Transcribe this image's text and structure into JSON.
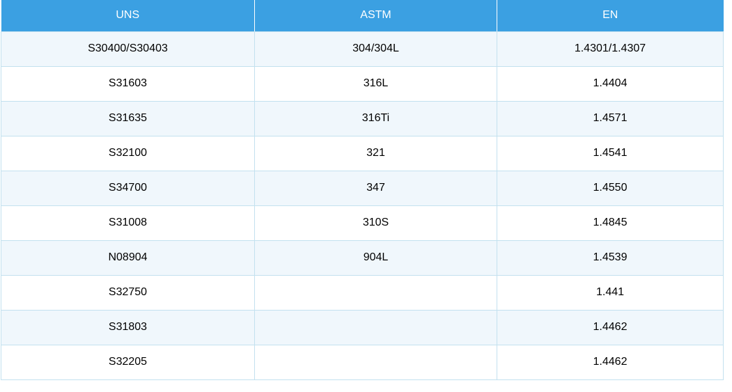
{
  "chart_data": {
    "type": "table",
    "columns": [
      "UNS",
      "ASTM",
      "EN"
    ],
    "rows": [
      [
        "S30400/S30403",
        "304/304L",
        "1.4301/1.4307"
      ],
      [
        "S31603",
        "316L",
        "1.4404"
      ],
      [
        "S31635",
        "316Ti",
        "1.4571"
      ],
      [
        "S32100",
        "321",
        "1.4541"
      ],
      [
        "S34700",
        "347",
        "1.4550"
      ],
      [
        "S31008",
        "310S",
        "1.4845"
      ],
      [
        "N08904",
        "904L",
        "1.4539"
      ],
      [
        "S32750",
        "",
        "1.441"
      ],
      [
        "S31803",
        "",
        "1.4462"
      ],
      [
        "S32205",
        "",
        "1.4462"
      ]
    ],
    "layout": {
      "header_position": "top",
      "grid": true,
      "alternating_rows": true
    }
  },
  "colors": {
    "header_bg": "#3BA0E2",
    "header_text": "#FFFFFF",
    "header_divider": "#FFFFFF",
    "row_alt_bg": "#F0F7FC",
    "row_bg": "#FFFFFF",
    "border": "#C3E1EF",
    "cell_text": "#000000"
  }
}
